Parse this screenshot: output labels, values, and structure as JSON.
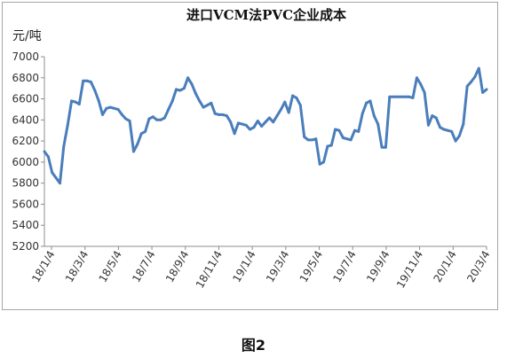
{
  "chart_data": {
    "type": "line",
    "title": "进口VCM法PVC企业成本",
    "ylabel": "元/吨",
    "xlabel": "",
    "ylim": [
      5200,
      7000
    ],
    "yticks": [
      5200,
      5400,
      5600,
      5800,
      6000,
      6200,
      6400,
      6600,
      6800,
      7000
    ],
    "grid": false,
    "legend": "none",
    "line_color": "#4a7ebb",
    "x_tick_labels": [
      "18/1/4",
      "18/3/4",
      "18/5/4",
      "18/7/4",
      "18/9/4",
      "18/11/4",
      "19/1/4",
      "19/3/4",
      "19/5/4",
      "19/7/4",
      "19/9/4",
      "19/11/4",
      "20/1/4",
      "20/3/4"
    ],
    "series": [
      {
        "values": [
          6100,
          6050,
          5900,
          5850,
          5800,
          6150,
          6350,
          6580,
          6570,
          6550,
          6770,
          6770,
          6760,
          6680,
          6580,
          6450,
          6510,
          6520,
          6510,
          6500,
          6450,
          6410,
          6390,
          6100,
          6170,
          6270,
          6290,
          6410,
          6430,
          6400,
          6400,
          6420,
          6500,
          6580,
          6690,
          6680,
          6700,
          6800,
          6740,
          6650,
          6580,
          6520,
          6540,
          6560,
          6460,
          6450,
          6450,
          6440,
          6380,
          6270,
          6370,
          6360,
          6350,
          6310,
          6330,
          6390,
          6340,
          6380,
          6420,
          6380,
          6440,
          6500,
          6570,
          6470,
          6630,
          6610,
          6540,
          6240,
          6210,
          6210,
          6220,
          5980,
          6000,
          6150,
          6160,
          6310,
          6300,
          6230,
          6220,
          6210,
          6300,
          6290,
          6460,
          6560,
          6580,
          6440,
          6360,
          6140,
          6140,
          6620,
          6620,
          6620,
          6620,
          6620,
          6620,
          6610,
          6800,
          6740,
          6660,
          6350,
          6440,
          6420,
          6330,
          6310,
          6300,
          6290,
          6200,
          6250,
          6360,
          6720,
          6760,
          6810,
          6890,
          6660,
          6690
        ]
      }
    ]
  },
  "caption": "图2"
}
